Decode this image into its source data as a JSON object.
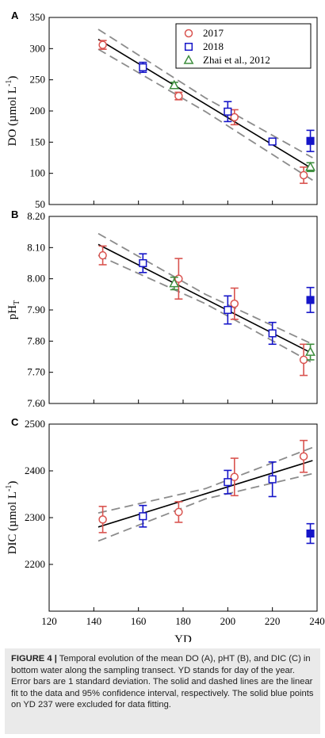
{
  "colors": {
    "series_2017": "#d9534f",
    "series_2018": "#1515c8",
    "series_zhai": "#3e8e3e",
    "fit_line": "#000000",
    "ci_line": "#8c8c8c",
    "caption_bg": "#eaeaea"
  },
  "legend": {
    "items": [
      {
        "name": "2017",
        "marker": "circle",
        "color": "#d9534f"
      },
      {
        "name": "2018",
        "marker": "square",
        "color": "#1515c8"
      },
      {
        "name": "Zhai et al., 2012",
        "marker": "triangle",
        "color": "#3e8e3e"
      }
    ]
  },
  "caption": {
    "fig_label": "FIGURE 4 |",
    "text": "Temporal evolution of the mean DO (A), pHT (B), and DIC (C) in bottom water along the sampling transect. YD stands for day of the year. Error bars are 1 standard deviation. The solid and dashed lines are the linear fit to the data and 95% confidence interval, respectively. The solid blue points on YD 237 were excluded for data fitting."
  },
  "chart_data": [
    {
      "panel": "A",
      "type": "scatter",
      "ylabel_main": "DO (µmol L",
      "ylabel_sup": "-1",
      "ylabel_end": ")",
      "ylim": [
        50,
        350
      ],
      "yticks": [
        50,
        100,
        150,
        200,
        250,
        300,
        350
      ],
      "ytick_labels": [
        "50",
        "100",
        "150",
        "200",
        "250",
        "300",
        "350"
      ],
      "xlim": [
        120,
        240
      ],
      "series": [
        {
          "name": "2017",
          "marker": "circle",
          "points": [
            {
              "x": 144,
              "y": 306,
              "err": 7
            },
            {
              "x": 178,
              "y": 224,
              "err": 6
            },
            {
              "x": 203,
              "y": 190,
              "err": 12
            },
            {
              "x": 234,
              "y": 97,
              "err": 13
            }
          ]
        },
        {
          "name": "2018",
          "marker": "square",
          "points": [
            {
              "x": 162,
              "y": 270,
              "err": 8
            },
            {
              "x": 200,
              "y": 199,
              "err": 16
            },
            {
              "x": 220,
              "y": 151,
              "err": 4
            }
          ]
        },
        {
          "name": "Zhai et al., 2012",
          "marker": "triangle",
          "points": [
            {
              "x": 176,
              "y": 241,
              "err": 5
            },
            {
              "x": 237,
              "y": 110,
              "err": 7
            }
          ]
        }
      ],
      "excluded": [
        {
          "x": 237,
          "y": 152,
          "err": 17
        }
      ],
      "fit": {
        "x": [
          142,
          238
        ],
        "y": [
          315,
          107
        ]
      },
      "ci_upper": {
        "x": [
          142,
          190,
          238
        ],
        "y": [
          331,
          221,
          125
        ]
      },
      "ci_lower": {
        "x": [
          142,
          190,
          238
        ],
        "y": [
          299,
          199,
          89
        ]
      }
    },
    {
      "panel": "B",
      "type": "scatter",
      "ylabel_main": "pH",
      "ylabel_sub": "T",
      "ylim": [
        7.6,
        8.2
      ],
      "yticks": [
        7.6,
        7.7,
        7.8,
        7.9,
        8.0,
        8.1,
        8.2
      ],
      "ytick_labels": [
        "7.60",
        "7.70",
        "7.80",
        "7.90",
        "8.00",
        "8.10",
        "8.20"
      ],
      "xlim": [
        120,
        240
      ],
      "series": [
        {
          "name": "2017",
          "marker": "circle",
          "points": [
            {
              "x": 144,
              "y": 8.075,
              "err": 0.03
            },
            {
              "x": 178,
              "y": 8.0,
              "err": 0.065
            },
            {
              "x": 203,
              "y": 7.92,
              "err": 0.05
            },
            {
              "x": 234,
              "y": 7.74,
              "err": 0.05
            }
          ]
        },
        {
          "name": "2018",
          "marker": "square",
          "points": [
            {
              "x": 162,
              "y": 8.05,
              "err": 0.03
            },
            {
              "x": 200,
              "y": 7.9,
              "err": 0.045
            },
            {
              "x": 220,
              "y": 7.825,
              "err": 0.035
            }
          ]
        },
        {
          "name": "Zhai et al., 2012",
          "marker": "triangle",
          "points": [
            {
              "x": 176,
              "y": 7.985,
              "err": 0.02
            },
            {
              "x": 237,
              "y": 7.765,
              "err": 0.025
            }
          ]
        }
      ],
      "excluded": [
        {
          "x": 237,
          "y": 7.932,
          "err": 0.04
        }
      ],
      "fit": {
        "x": [
          142,
          238
        ],
        "y": [
          8.11,
          7.76
        ]
      },
      "ci_upper": {
        "x": [
          142,
          190,
          238
        ],
        "y": [
          8.145,
          7.95,
          7.79
        ]
      },
      "ci_lower": {
        "x": [
          142,
          190,
          238
        ],
        "y": [
          8.075,
          7.92,
          7.73
        ]
      }
    },
    {
      "panel": "C",
      "type": "scatter",
      "ylabel_main": "DIC (µmol L",
      "ylabel_sup": "-1",
      "ylabel_end": ")",
      "ylim": [
        2100,
        2500
      ],
      "yticks": [
        2200,
        2300,
        2400,
        2500
      ],
      "ytick_labels": [
        "2200",
        "2300",
        "2400",
        "2500"
      ],
      "xlim": [
        120,
        240
      ],
      "xticks": [
        120,
        140,
        160,
        180,
        200,
        220,
        240
      ],
      "xtick_labels": [
        "120",
        "140",
        "160",
        "180",
        "200",
        "220",
        "240"
      ],
      "xlabel": "YD",
      "series": [
        {
          "name": "2017",
          "marker": "circle",
          "points": [
            {
              "x": 144,
              "y": 2296,
              "err": 28
            },
            {
              "x": 178,
              "y": 2312,
              "err": 22
            },
            {
              "x": 203,
              "y": 2387,
              "err": 40
            },
            {
              "x": 234,
              "y": 2431,
              "err": 34
            }
          ]
        },
        {
          "name": "2018",
          "marker": "square",
          "points": [
            {
              "x": 162,
              "y": 2303,
              "err": 23
            },
            {
              "x": 200,
              "y": 2376,
              "err": 25
            },
            {
              "x": 220,
              "y": 2382,
              "err": 37
            }
          ]
        }
      ],
      "excluded": [
        {
          "x": 237,
          "y": 2266,
          "err": 21
        }
      ],
      "fit": {
        "x": [
          142,
          238
        ],
        "y": [
          2280,
          2422
        ]
      },
      "ci_upper": {
        "x": [
          142,
          190,
          238
        ],
        "y": [
          2310,
          2362,
          2450
        ]
      },
      "ci_lower": {
        "x": [
          142,
          190,
          238
        ],
        "y": [
          2250,
          2340,
          2394
        ]
      }
    }
  ]
}
